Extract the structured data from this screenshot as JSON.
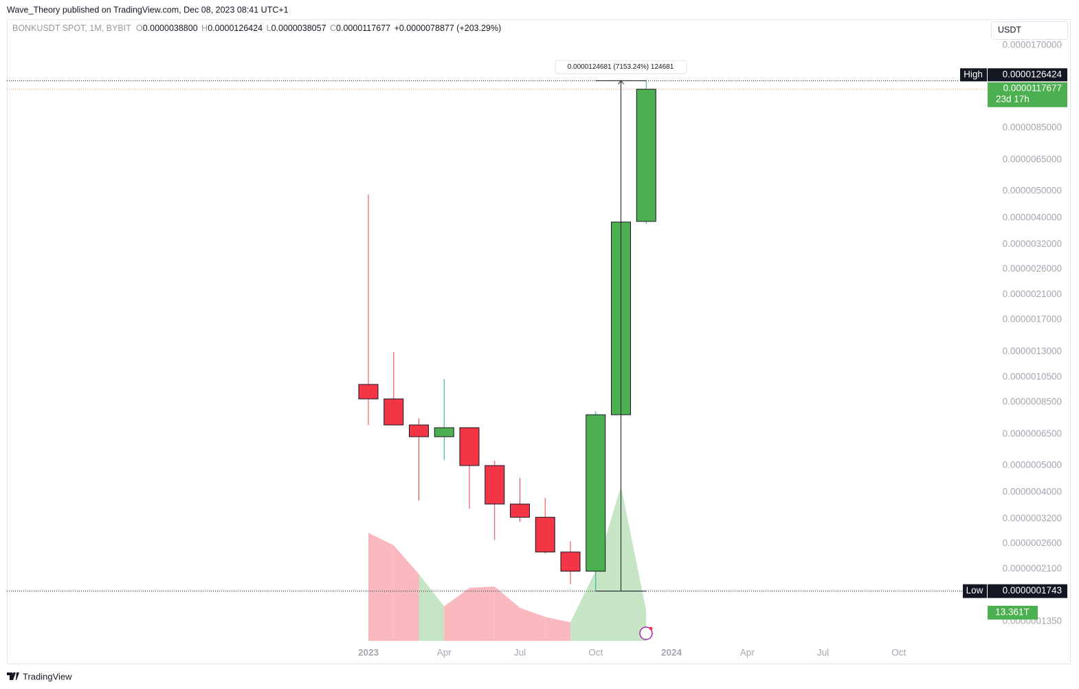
{
  "published": "Wave_Theory published on TradingView.com, Dec 08, 2023 08:41 UTC+1",
  "header": {
    "symbol": "BONKUSDT SPOT, 1M, BYBIT",
    "open_label": "O",
    "open": "0.0000038800",
    "high_label": "H",
    "high": "0.0000126424",
    "low_label": "L",
    "low": "0.0000038057",
    "close_label": "C",
    "close": "0.0000117677",
    "change": "+0.0000078877 (+203.29%)"
  },
  "currency_button": "USDT",
  "footer_logo": "TradingView",
  "chart_data": {
    "type": "candlestick",
    "log_scale": true,
    "up_color": "#4caf50",
    "down_color": "#f23645",
    "up_wick_color": "#22ab94",
    "categories": [
      "2023",
      null,
      null,
      "Apr",
      null,
      null,
      "Jul",
      null,
      null,
      "Oct",
      null,
      null,
      "2024",
      null,
      null,
      "Apr",
      null,
      null,
      "Jul",
      null,
      null,
      "Oct",
      null,
      null
    ],
    "open": [
      9.88e-07,
      8.75e-07,
      7.03e-07,
      6.37e-07,
      6.87e-07,
      5e-07,
      3.62e-07,
      3.24e-07,
      2.42e-07,
      2.06e-07,
      7.66e-07,
      3.88e-06,
      null,
      null,
      null,
      null,
      null,
      null,
      null,
      null,
      null,
      null,
      null,
      null
    ],
    "high": [
      4.86e-06,
      1.296e-06,
      7.41e-07,
      1.035e-06,
      6.9e-07,
      5.21e-07,
      4.51e-07,
      3.81e-07,
      2.65e-07,
      7.89e-07,
      5.78e-06,
      1.26424e-05,
      null,
      null,
      null,
      null,
      null,
      null,
      null,
      null,
      null,
      null,
      null,
      null
    ],
    "low": [
      7.03e-07,
      7e-07,
      3.73e-07,
      5.24e-07,
      3.48e-07,
      2.68e-07,
      3.12e-07,
      2.39e-07,
      1.85e-07,
      1.743e-07,
      5.74e-07,
      3.8057e-06,
      null,
      null,
      null,
      null,
      null,
      null,
      null,
      null,
      null,
      null,
      null,
      null
    ],
    "close": [
      8.75e-07,
      7.03e-07,
      6.37e-07,
      6.87e-07,
      5e-07,
      3.62e-07,
      3.24e-07,
      2.42e-07,
      2.06e-07,
      7.66e-07,
      3.86e-06,
      1.17677e-05,
      null,
      null,
      null,
      null,
      null,
      null,
      null,
      null,
      null,
      null,
      null,
      null
    ],
    "volume": {
      "values": [
        47.7,
        42.2,
        29.5,
        15.2,
        23.4,
        24.0,
        14.6,
        10.6,
        8.2,
        31.0,
        68.3,
        13.361,
        null,
        null,
        null,
        null,
        null,
        null,
        null,
        null,
        null,
        null,
        null,
        null
      ],
      "value_labels": [
        null,
        null,
        null,
        null,
        null,
        null,
        null,
        null,
        null,
        null,
        null,
        "13.361T",
        null,
        null,
        null,
        null,
        null,
        null,
        null,
        null,
        null,
        null,
        null,
        null
      ],
      "up_color": "#c5e5c5",
      "down_color": "#f9b9be"
    },
    "ylim": [
      1.135e-07,
      2.117e-05
    ],
    "yticks": [
      {
        "value": 1.7e-05,
        "label": "0.0000170000"
      },
      {
        "value": 8.5e-06,
        "label": "0.0000085000"
      },
      {
        "value": 6.5e-06,
        "label": "0.0000065000"
      },
      {
        "value": 5e-06,
        "label": "0.0000050000"
      },
      {
        "value": 4e-06,
        "label": "0.0000040000"
      },
      {
        "value": 3.2e-06,
        "label": "0.0000032000"
      },
      {
        "value": 2.6e-06,
        "label": "0.0000026000"
      },
      {
        "value": 2.1e-06,
        "label": "0.0000021000"
      },
      {
        "value": 1.7e-06,
        "label": "0.0000017000"
      },
      {
        "value": 1.3e-06,
        "label": "0.0000013000"
      },
      {
        "value": 1.05e-06,
        "label": "0.0000010500"
      },
      {
        "value": 8.5e-07,
        "label": "0.0000008500"
      },
      {
        "value": 6.5e-07,
        "label": "0.0000006500"
      },
      {
        "value": 5e-07,
        "label": "0.0000005000"
      },
      {
        "value": 4e-07,
        "label": "0.0000004000"
      },
      {
        "value": 3.2e-07,
        "label": "0.0000003200"
      },
      {
        "value": 2.6e-07,
        "label": "0.0000002600"
      },
      {
        "value": 2.1e-07,
        "label": "0.0000002100"
      },
      {
        "value": 1.35e-07,
        "label": "0.0000001350"
      }
    ],
    "high_marker": {
      "title": "High",
      "value": 1.26424e-05,
      "label": "0.0000126424"
    },
    "low_marker": {
      "title": "Low",
      "value": 1.743e-07,
      "label": "0.0000001743"
    },
    "last_price": {
      "value": 1.17677e-05,
      "label": "0.0000117677",
      "countdown": "23d 17h",
      "color": "#4caf50",
      "line_color": "#e8a36b"
    },
    "measure": {
      "text": "0.0000124681 (7153.24%) 124681"
    }
  }
}
